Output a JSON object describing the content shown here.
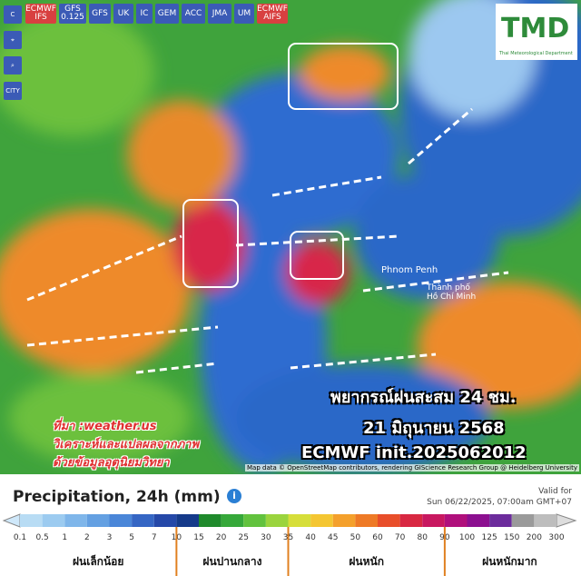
{
  "toolbar": {
    "models": [
      "ECMWF IFS",
      "GFS 0.125",
      "GFS",
      "UK",
      "IC",
      "GEM",
      "ACC",
      "JMA",
      "UM",
      "ECMWF AIFS"
    ],
    "side": [
      "CITY"
    ]
  },
  "logo": {
    "title": "TMD",
    "subtitle": "Thai Meteorological Department"
  },
  "overlay": {
    "heading": "พยากรณ์ฝนสะสม 24 ชม.",
    "date": "21 มิถุนายน 2568",
    "model": "ECMWF init.2025062012",
    "credits": [
      "ที่มา :weather.us",
      "วิเคราะห์และแปลผลจากภาพ",
      "ด้วยข้อมูลอุตุนิยมวิทยา"
    ],
    "places": [
      "Phnom Penh",
      "Thành phố",
      "Hồ Chí Minh"
    ],
    "attribution": "Map data © OpenStreetMap contributors, rendering GIScience Research Group @ Heidelberg University"
  },
  "legend": {
    "title": "Precipitation, 24h (mm)",
    "valid_label": "Valid for",
    "valid_time": "Sun 06/22/2025, 07:00am GMT+07",
    "levels": [
      "0.1",
      "0.5",
      "1",
      "2",
      "3",
      "5",
      "7",
      "10",
      "15",
      "20",
      "25",
      "30",
      "35",
      "40",
      "45",
      "50",
      "60",
      "70",
      "80",
      "90",
      "100",
      "125",
      "150",
      "200",
      "300"
    ],
    "colors": [
      "#b8dcf4",
      "#9ccbf0",
      "#7fb6ea",
      "#64a0e2",
      "#4a86d8",
      "#3566c4",
      "#2548a8",
      "#153a8a",
      "#1f8a2c",
      "#36a83a",
      "#62c23e",
      "#9ad43e",
      "#d6de3a",
      "#f4c632",
      "#f4a02c",
      "#ee7a26",
      "#e84e2a",
      "#d82842",
      "#c81860",
      "#b0107c",
      "#8c1090",
      "#6c2c9c",
      "#9a9a9a",
      "#bdbdbd"
    ],
    "categories": [
      "ฝนเล็กน้อย",
      "ฝนปานกลาง",
      "ฝนหนัก",
      "ฝนหนักมาก"
    ]
  }
}
